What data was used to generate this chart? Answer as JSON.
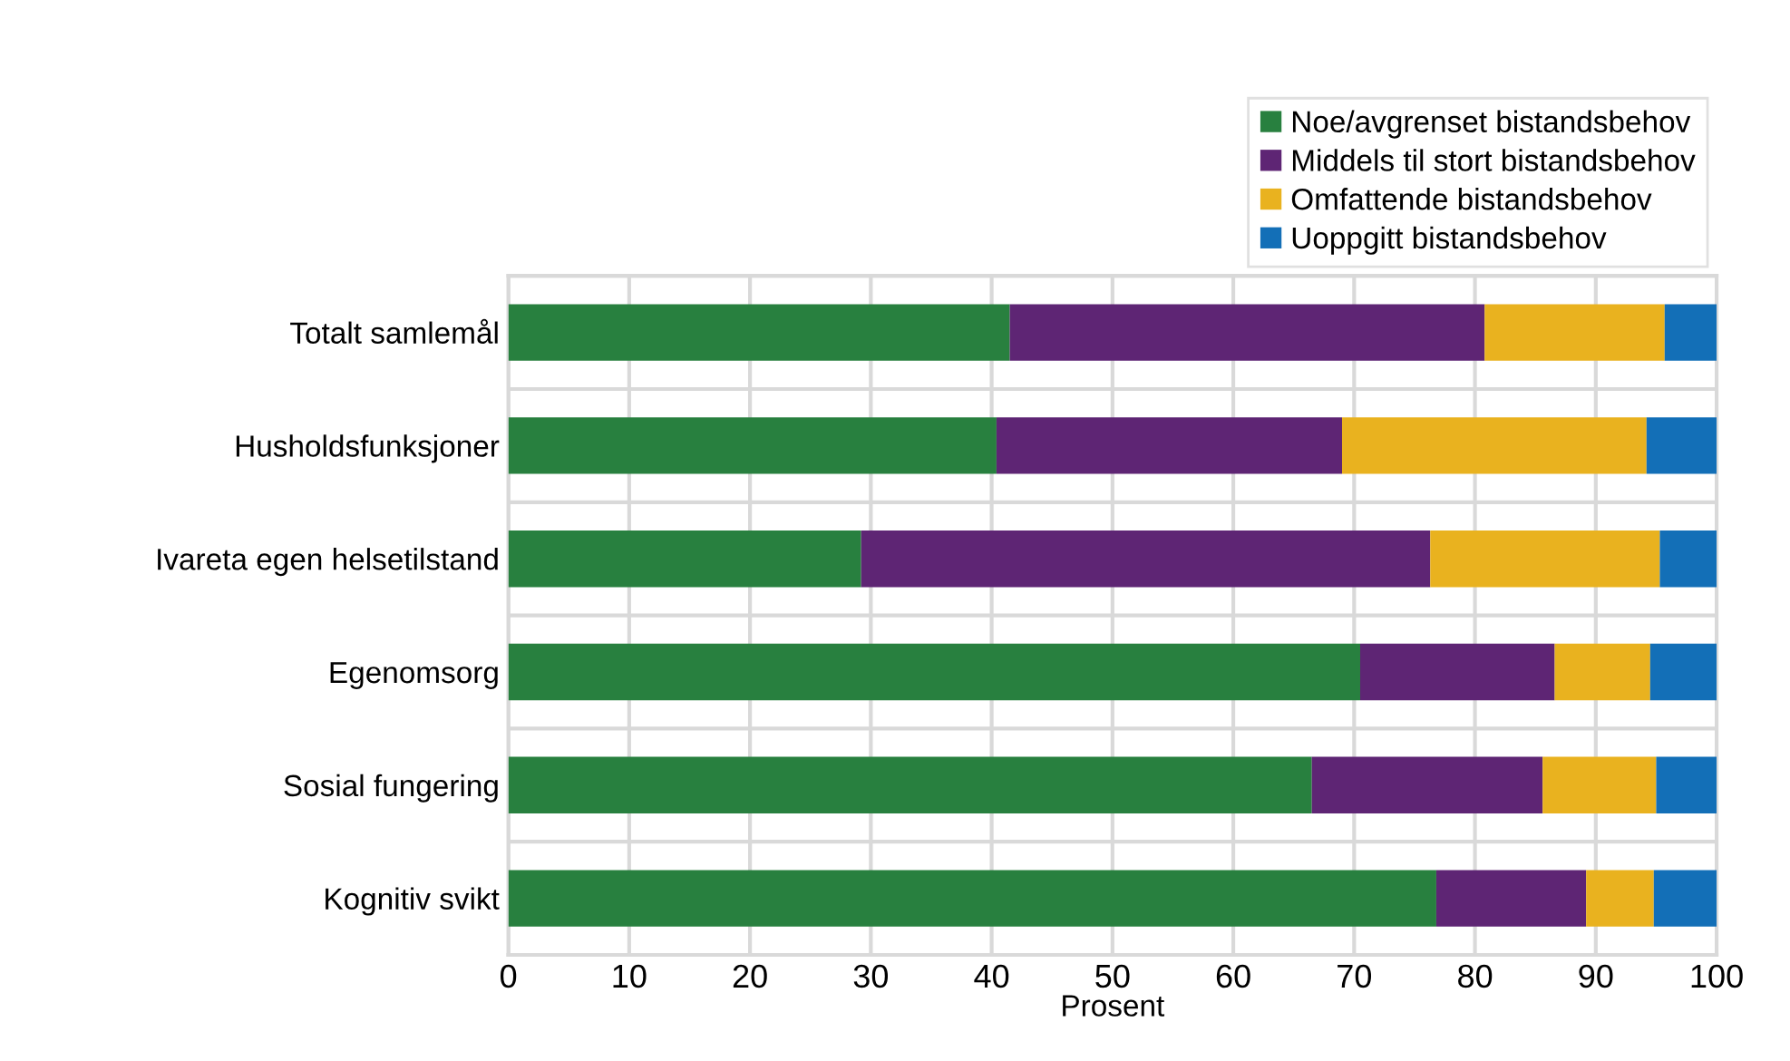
{
  "chart_data": {
    "type": "bar",
    "orientation": "horizontal",
    "stacked": true,
    "categories": [
      "Totalt samlemål",
      "Husholdsfunksjoner",
      "Ivareta egen helsetilstand",
      "Egenomsorg",
      "Sosial fungering",
      "Kognitiv svikt"
    ],
    "series": [
      {
        "name": "Noe/avgrenset bistandsbehov",
        "color": "#28803f",
        "values": [
          41.5,
          40.4,
          29.2,
          70.5,
          66.5,
          76.8
        ]
      },
      {
        "name": "Middels til stort bistandsbehov",
        "color": "#5e2574",
        "values": [
          39.3,
          28.6,
          47.1,
          16.1,
          19.1,
          12.4
        ]
      },
      {
        "name": "Omfattende bistandsbehov",
        "color": "#e9b21f",
        "values": [
          14.9,
          25.2,
          19.0,
          7.9,
          9.4,
          5.6
        ]
      },
      {
        "name": "Uoppgitt bistandsbehov",
        "color": "#136fb7",
        "values": [
          4.3,
          5.8,
          4.7,
          5.5,
          5.0,
          5.2
        ]
      }
    ],
    "xlabel": "Prosent",
    "xlim": [
      0,
      100
    ],
    "xticks": [
      0,
      10,
      20,
      30,
      40,
      50,
      60,
      70,
      80,
      90,
      100
    ],
    "grid": true,
    "legend": "top right"
  }
}
